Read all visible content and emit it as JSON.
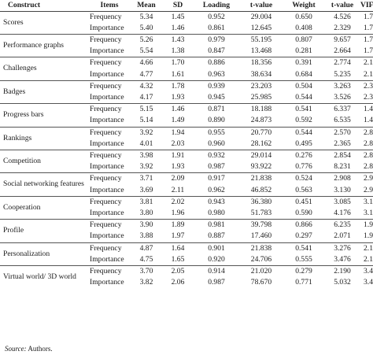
{
  "headers": [
    "Construct",
    "Items",
    "Mean",
    "SD",
    "Loading",
    "t-value",
    "Weight",
    "t-value",
    "VIF"
  ],
  "rows": [
    {
      "construct": "Scores",
      "items": [
        [
          "Frequency",
          "5.34",
          "1.45",
          "0.952",
          "29.004",
          "0.650",
          "4.526",
          "1.704"
        ],
        [
          "Importance",
          "5.40",
          "1.46",
          "0.861",
          "12.645",
          "0.408",
          "2.329",
          "1.704"
        ]
      ]
    },
    {
      "construct": "Performance graphs",
      "items": [
        [
          "Frequency",
          "5.26",
          "1.43",
          "0.979",
          "55.195",
          "0.807",
          "9.657",
          "1.704"
        ],
        [
          "Importance",
          "5.54",
          "1.38",
          "0.847",
          "13.468",
          "0.281",
          "2.664",
          "1.704"
        ]
      ]
    },
    {
      "construct": "Challenges",
      "items": [
        [
          "Frequency",
          "4.66",
          "1.70",
          "0.886",
          "18.356",
          "0.391",
          "2.774",
          "2.134"
        ],
        [
          "Importance",
          "4.77",
          "1.61",
          "0.963",
          "38.634",
          "0.684",
          "5.235",
          "2.134"
        ]
      ]
    },
    {
      "construct": "Badges",
      "items": [
        [
          "Frequency",
          "4.32",
          "1.78",
          "0.939",
          "23.203",
          "0.504",
          "3.263",
          "2.325"
        ],
        [
          "Importance",
          "4.17",
          "1.93",
          "0.945",
          "25.985",
          "0.544",
          "3.526",
          "2.325"
        ]
      ]
    },
    {
      "construct": "Progress bars",
      "items": [
        [
          "Frequency",
          "5.15",
          "1.46",
          "0.871",
          "18.188",
          "0.541",
          "6.337",
          "1.453"
        ],
        [
          "Importance",
          "5.14",
          "1.49",
          "0.890",
          "24.873",
          "0.592",
          "6.535",
          "1.453"
        ]
      ]
    },
    {
      "construct": "Rankings",
      "items": [
        [
          "Frequency",
          "3.92",
          "1.94",
          "0.955",
          "20.770",
          "0.544",
          "2.570",
          "2.893"
        ],
        [
          "Importance",
          "4.01",
          "2.03",
          "0.960",
          "28.162",
          "0.495",
          "2.365",
          "2.893"
        ]
      ]
    },
    {
      "construct": "Competition",
      "items": [
        [
          "Frequency",
          "3.98",
          "1.91",
          "0.932",
          "29.014",
          "0.276",
          "2.854",
          "2.854"
        ],
        [
          "Importance",
          "3.92",
          "1.93",
          "0.987",
          "93.922",
          "0.776",
          "8.231",
          "2.854"
        ]
      ]
    },
    {
      "construct": "Social networking features",
      "items": [
        [
          "Frequency",
          "3.71",
          "2.09",
          "0.917",
          "21.838",
          "0.524",
          "2.908",
          "2.908"
        ],
        [
          "Importance",
          "3.69",
          "2.11",
          "0.962",
          "46.852",
          "0.563",
          "3.130",
          "2.908"
        ]
      ]
    },
    {
      "construct": "Cooperation",
      "items": [
        [
          "Frequency",
          "3.81",
          "2.02",
          "0.943",
          "36.380",
          "0.451",
          "3.085",
          "3.197"
        ],
        [
          "Importance",
          "3.80",
          "1.96",
          "0.980",
          "51.783",
          "0.590",
          "4.176",
          "3.197"
        ]
      ]
    },
    {
      "construct": "Profile",
      "items": [
        [
          "Frequency",
          "3.90",
          "1.89",
          "0.981",
          "39.798",
          "0.866",
          "6.235",
          "1.961"
        ],
        [
          "Importance",
          "3.88",
          "1.97",
          "0.887",
          "17.460",
          "0.297",
          "2.071",
          "1.961"
        ]
      ]
    },
    {
      "construct": "Personalization",
      "items": [
        [
          "Frequency",
          "4.87",
          "1.64",
          "0.901",
          "21.838",
          "0.541",
          "3.276",
          "2.150"
        ],
        [
          "Importance",
          "4.75",
          "1.65",
          "0.920",
          "24.706",
          "0.555",
          "3.476",
          "2.150"
        ]
      ]
    },
    {
      "construct": "Virtual world/ 3D world",
      "items": [
        [
          "Frequency",
          "3.70",
          "2.05",
          "0.914",
          "21.020",
          "0.279",
          "2.190",
          "3.438"
        ],
        [
          "Importance",
          "3.82",
          "2.06",
          "0.987",
          "78.670",
          "0.771",
          "5.032",
          "3.438"
        ]
      ]
    }
  ],
  "source": {
    "label": "Source:",
    "text": "Authors."
  }
}
